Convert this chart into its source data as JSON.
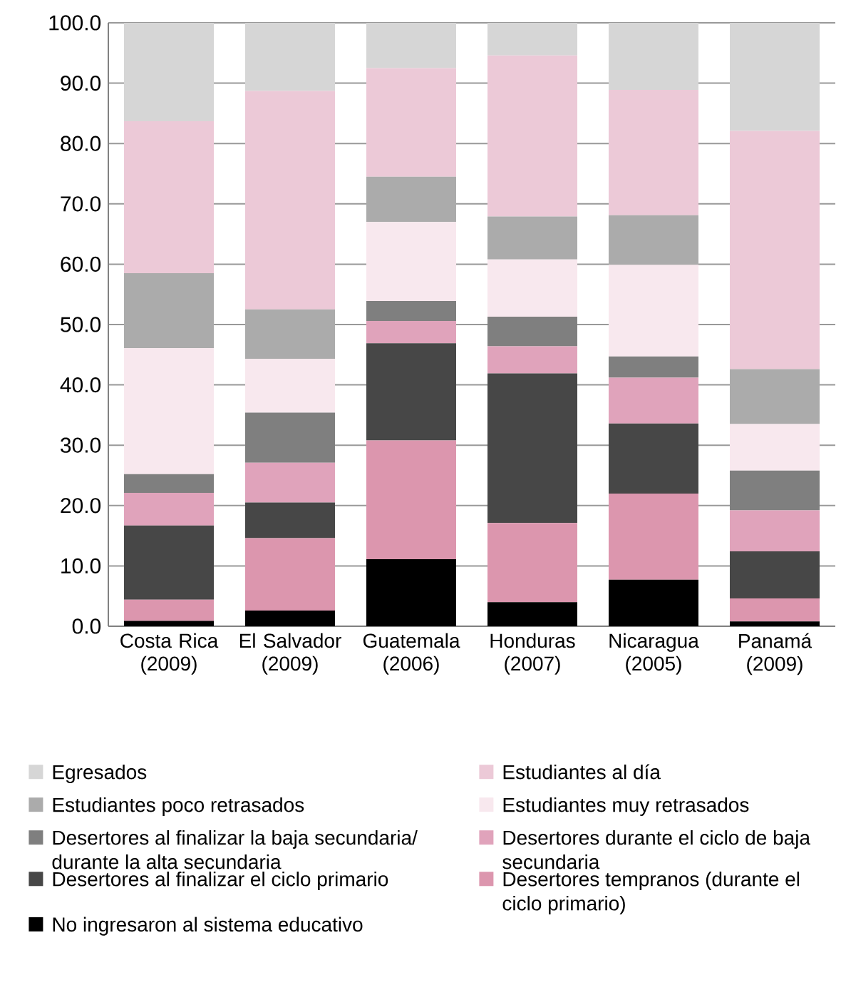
{
  "chart_data": {
    "type": "bar",
    "stacked": true,
    "legend": "bottom",
    "grid": "y",
    "categories": [
      "Costa Rica (2009)",
      "El Salvador (2009)",
      "Guatemala (2006)",
      "Honduras (2007)",
      "Nicaragua (2005)",
      "Panamá (2009)"
    ],
    "ylim": [
      0,
      100
    ],
    "yticks": [
      {
        "value": 0,
        "label": "0.0"
      },
      {
        "value": 10,
        "label": "10.0"
      },
      {
        "value": 20,
        "label": "20.0"
      },
      {
        "value": 30,
        "label": "30.0"
      },
      {
        "value": 40,
        "label": "40.0"
      },
      {
        "value": 50,
        "label": "50.0"
      },
      {
        "value": 60,
        "label": "60.0"
      },
      {
        "value": 70,
        "label": "70.0"
      },
      {
        "value": 80,
        "label": "80.0"
      },
      {
        "value": 90,
        "label": "90.0"
      },
      {
        "value": 100,
        "label": "100.0"
      }
    ],
    "series": [
      {
        "name": "No ingresaron al sistema educativo",
        "color": "#000000",
        "values": [
          0.9,
          2.6,
          11.1,
          4.0,
          7.7,
          0.8
        ]
      },
      {
        "name": "Desertores tempranos (durante el ciclo primario)",
        "color": "#dc96ae",
        "values": [
          3.5,
          12.0,
          19.7,
          13.1,
          14.3,
          3.8
        ]
      },
      {
        "name": "Desertores al finalizar el ciclo primario",
        "color": "#474747",
        "values": [
          12.3,
          5.9,
          16.1,
          24.8,
          11.6,
          7.8
        ]
      },
      {
        "name": "Desertores durante el ciclo de baja secundaria",
        "color": "#e0a3bb",
        "values": [
          5.4,
          6.6,
          3.7,
          4.5,
          7.6,
          6.8
        ]
      },
      {
        "name": "Desertores al finalizar la baja secundaria/ durante la alta secundaria",
        "color": "#7f7f7f",
        "values": [
          3.1,
          8.3,
          3.3,
          4.9,
          3.5,
          6.6
        ]
      },
      {
        "name": "Estudiantes muy retrasados",
        "color": "#f8e8ee",
        "values": [
          20.9,
          8.9,
          13.1,
          9.5,
          15.2,
          7.7
        ]
      },
      {
        "name": "Estudiantes poco retrasados",
        "color": "#ababab",
        "values": [
          12.4,
          8.2,
          7.5,
          7.1,
          8.2,
          9.1
        ]
      },
      {
        "name": "Estudiantes al día",
        "color": "#ecc9d7",
        "values": [
          25.2,
          36.2,
          18.0,
          26.7,
          20.8,
          39.5
        ]
      },
      {
        "name": "Egresados",
        "color": "#d6d6d6",
        "values": [
          16.3,
          11.3,
          7.5,
          5.4,
          11.1,
          17.9
        ]
      }
    ]
  }
}
